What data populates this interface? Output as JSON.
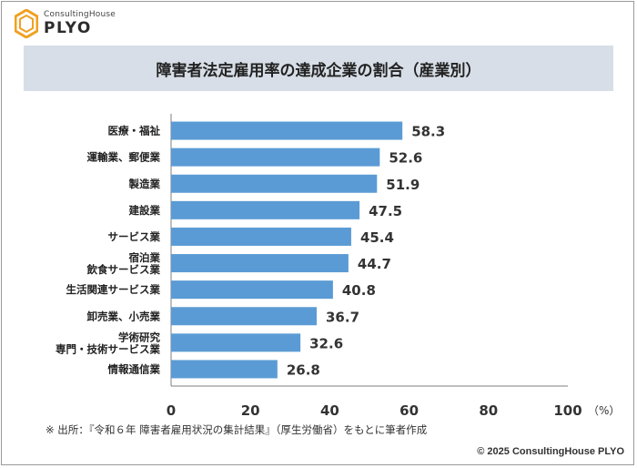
{
  "brand": {
    "sub": "ConsultingHouse",
    "main": "PLYO"
  },
  "colors": {
    "bar": "#5b9bd5",
    "title_bg": "#d7dee7",
    "logo": "#f0a020"
  },
  "chart_data": {
    "type": "bar",
    "orientation": "horizontal",
    "title": "障害者法定雇用率の達成企業の割合（産業別）",
    "categories": [
      "医療・福祉",
      "運輸業、郵便業",
      "製造業",
      "建設業",
      "サービス業",
      "宿泊業\n飲食サービス業",
      "生活関連サービス業",
      "卸売業、小売業",
      "学術研究\n専門・技術サービス業",
      "情報通信業"
    ],
    "values": [
      58.3,
      52.6,
      51.9,
      47.5,
      45.4,
      44.7,
      40.8,
      36.7,
      32.6,
      26.8
    ],
    "value_labels": [
      "58.3",
      "52.6",
      "51.9",
      "47.5",
      "45.4",
      "44.7",
      "40.8",
      "36.7",
      "32.6",
      "26.8"
    ],
    "xlim": [
      0,
      100
    ],
    "xticks": [
      "0",
      "20",
      "40",
      "60",
      "80",
      "100"
    ],
    "x_unit": "（%）",
    "grid": false,
    "legend": "none"
  },
  "footer": {
    "source": "※ 出所：『令和６年 障害者雇用状況の集計結果』（厚生労働省）をもとに筆者作成",
    "copyright": "© 2025 ConsultingHouse PLYO"
  }
}
